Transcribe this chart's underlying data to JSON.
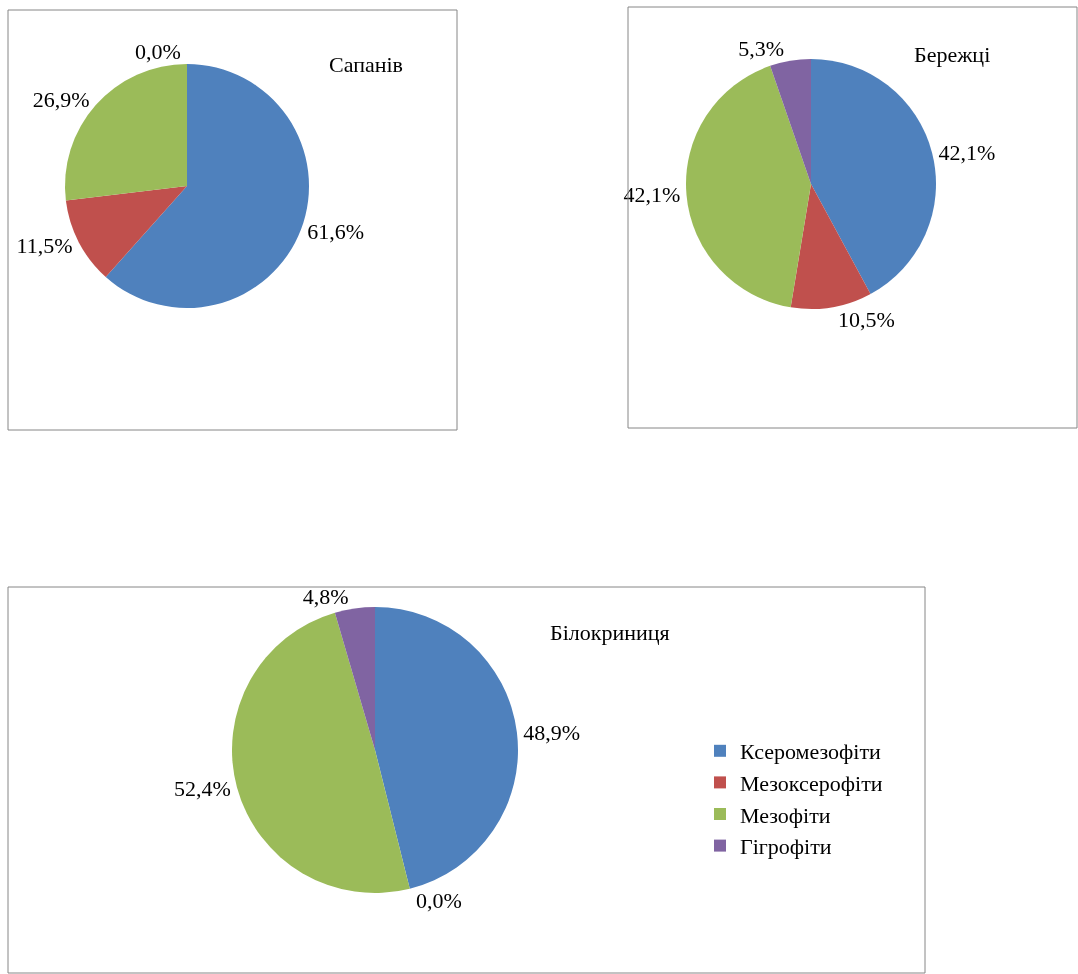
{
  "chart_data": [
    {
      "type": "pie",
      "title": "Сапанів",
      "categories": [
        null,
        null,
        null,
        null
      ],
      "values": [
        61.6,
        11.5,
        26.9,
        0.0
      ],
      "colors": [
        "#4f81bd",
        "#c0504d",
        "#9bbb59",
        "#8064a2"
      ],
      "value_labels": [
        "61,6%",
        "11,5%",
        "26,9%",
        "0,0%"
      ],
      "legend": false
    },
    {
      "type": "pie",
      "title": "Бережці",
      "categories": [
        null,
        null,
        null,
        null
      ],
      "values": [
        42.1,
        10.5,
        42.1,
        5.3
      ],
      "colors": [
        "#4f81bd",
        "#c0504d",
        "#9bbb59",
        "#8064a2"
      ],
      "value_labels": [
        "42,1%",
        "10,5%",
        "42,1%",
        "5,3%"
      ],
      "legend": false
    },
    {
      "type": "pie",
      "title": "Білокриниця",
      "categories": [
        "Ксеромезофіти",
        "Мезоксерофіти",
        "Мезофіти",
        "Гігрофіти"
      ],
      "values": [
        48.9,
        0.0,
        52.4,
        4.8
      ],
      "colors": [
        "#4f81bd",
        "#c0504d",
        "#9bbb59",
        "#8064a2"
      ],
      "value_labels": [
        "48,9%",
        "0,0%",
        "52,4%",
        "4,8%"
      ],
      "legend": "right"
    }
  ]
}
